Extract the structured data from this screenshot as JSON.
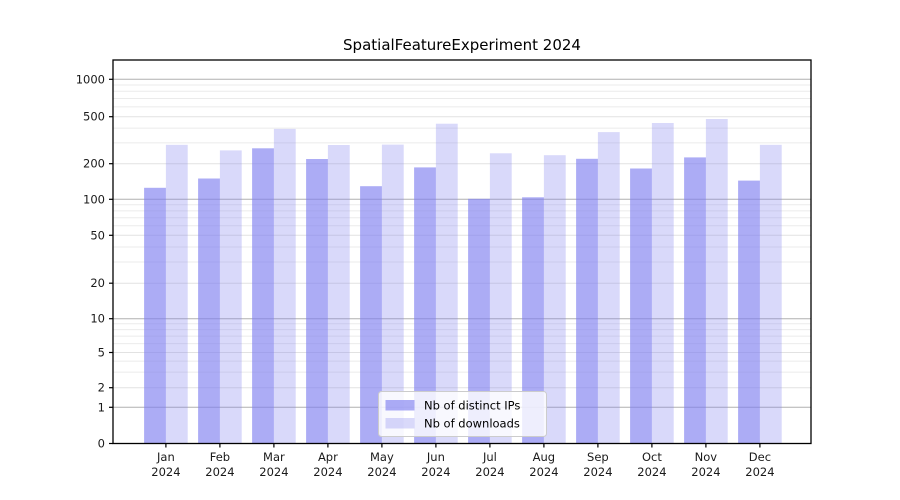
{
  "title": "SpatialFeatureExperiment 2024",
  "year": "2024",
  "months": [
    "Jan",
    "Feb",
    "Mar",
    "Apr",
    "May",
    "Jun",
    "Jul",
    "Aug",
    "Sep",
    "Oct",
    "Nov",
    "Dec"
  ],
  "chart_data": {
    "type": "bar",
    "title": "SpatialFeatureExperiment 2024",
    "categories": [
      "Jan 2024",
      "Feb 2024",
      "Mar 2024",
      "Apr 2024",
      "May 2024",
      "Jun 2024",
      "Jul 2024",
      "Aug 2024",
      "Sep 2024",
      "Oct 2024",
      "Nov 2024",
      "Dec 2024"
    ],
    "series": [
      {
        "name": "Nb of distinct IPs",
        "color": "#8080f0",
        "opacity": 0.65,
        "values": [
          125,
          150,
          270,
          219,
          129,
          186,
          101,
          104,
          220,
          182,
          226,
          144
        ]
      },
      {
        "name": "Nb of downloads",
        "color": "#8080f0",
        "opacity": 0.3,
        "values": [
          289,
          259,
          394,
          288,
          290,
          436,
          245,
          236,
          370,
          442,
          478,
          289
        ]
      }
    ],
    "xlabel": "",
    "ylabel": "",
    "yscale": "symlog",
    "y_ticks": [
      0,
      1,
      2,
      5,
      10,
      20,
      50,
      100,
      200,
      500,
      1000
    ],
    "ylim": [
      0,
      1450
    ],
    "grid": "horizontal",
    "legend_position": "lower center"
  },
  "colors": {
    "bar_base": "#8080f0",
    "grid_decade": "#b0b0b0",
    "grid_labeled": "#e2e2e2",
    "grid_minor": "#ebebeb",
    "spine": "#000000",
    "text": "#1a1a1a",
    "legend_border": "#cccccc",
    "legend_bg": "#ffffff"
  }
}
